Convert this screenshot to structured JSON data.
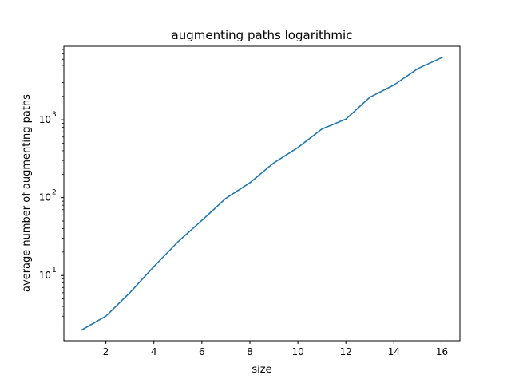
{
  "chart_data": {
    "type": "line",
    "title": "augmenting paths logarithmic",
    "xlabel": "size",
    "ylabel": "average number of augmenting paths",
    "yscale": "log",
    "grid": false,
    "xlim": [
      0.25,
      16.75
    ],
    "ylim": [
      1.45,
      8800
    ],
    "x_ticks": [
      2,
      4,
      6,
      8,
      10,
      12,
      14,
      16
    ],
    "y_ticks": [
      {
        "value": 10,
        "base": "10",
        "exp": "1"
      },
      {
        "value": 100,
        "base": "10",
        "exp": "2"
      },
      {
        "value": 1000,
        "base": "10",
        "exp": "3"
      }
    ],
    "series": [
      {
        "color": "#1f77b4",
        "x": [
          1,
          2,
          3,
          4,
          5,
          6,
          7,
          8,
          9,
          10,
          11,
          12,
          13,
          14,
          15,
          16
        ],
        "y": [
          2,
          3,
          6,
          13,
          27,
          51,
          98,
          155,
          280,
          440,
          760,
          1020,
          1950,
          2800,
          4550,
          6300
        ]
      }
    ]
  }
}
